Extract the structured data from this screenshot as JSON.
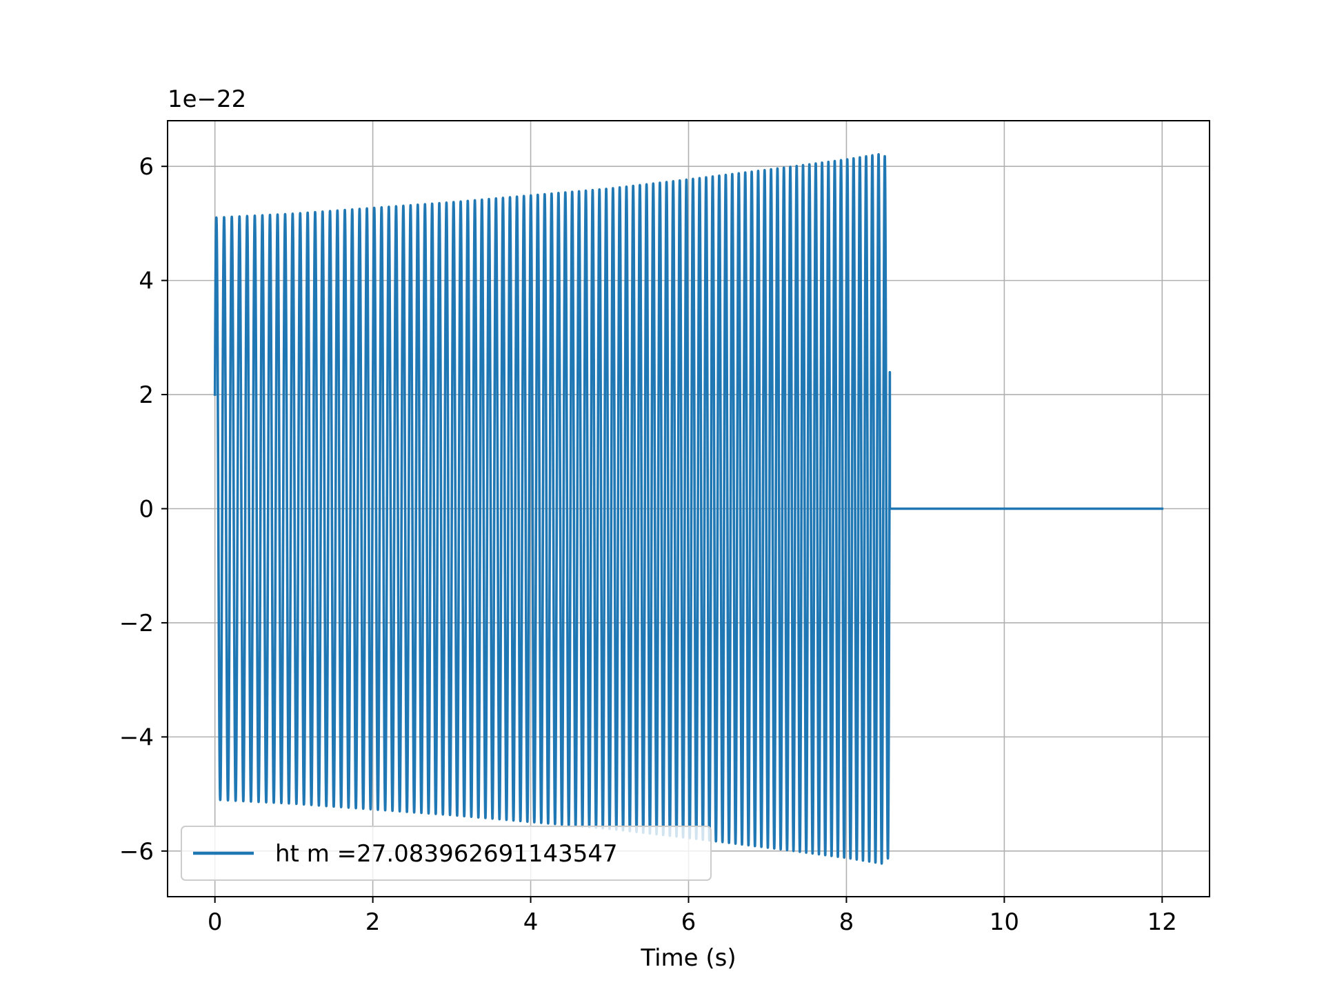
{
  "chart_data": {
    "type": "line",
    "title": "",
    "xlabel": "Time (s)",
    "ylabel": "",
    "y_offset_label": "1e−22",
    "xlim": [
      -0.6,
      12.6
    ],
    "ylim": [
      -6.8,
      6.8
    ],
    "x_ticks": [
      0,
      2,
      4,
      6,
      8,
      10,
      12
    ],
    "x_tick_labels": [
      "0",
      "2",
      "4",
      "6",
      "8",
      "10",
      "12"
    ],
    "y_ticks": [
      -6,
      -4,
      -2,
      0,
      2,
      4,
      6
    ],
    "y_tick_labels": [
      "−6",
      "−4",
      "−2",
      "0",
      "2",
      "4",
      "6"
    ],
    "grid": true,
    "legend_position": "lower-left",
    "series": [
      {
        "name": "ht m =27.083962691143547",
        "color": "#1f77b4",
        "signal_kind": "chirp",
        "start_value": 2.0,
        "cycle_count": 98,
        "envelope_points": [
          {
            "x": 0.0,
            "y": 5.1
          },
          {
            "x": 1.0,
            "y": 5.17
          },
          {
            "x": 2.0,
            "y": 5.27
          },
          {
            "x": 3.0,
            "y": 5.37
          },
          {
            "x": 4.0,
            "y": 5.49
          },
          {
            "x": 5.0,
            "y": 5.61
          },
          {
            "x": 6.0,
            "y": 5.77
          },
          {
            "x": 7.0,
            "y": 5.94
          },
          {
            "x": 8.0,
            "y": 6.12
          },
          {
            "x": 8.45,
            "y": 6.22
          },
          {
            "x": 8.55,
            "y": 6.1
          }
        ],
        "signal_end_x": 8.55,
        "flat_segment": {
          "x_start": 8.55,
          "x_end": 12.0,
          "y": 0.0
        }
      }
    ]
  }
}
